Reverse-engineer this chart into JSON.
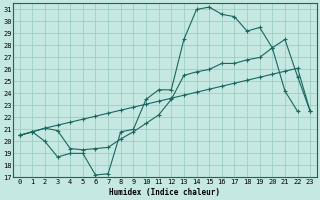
{
  "xlabel": "Humidex (Indice chaleur)",
  "xlim": [
    -0.5,
    23.5
  ],
  "ylim": [
    17,
    31.5
  ],
  "yticks": [
    17,
    18,
    19,
    20,
    21,
    22,
    23,
    24,
    25,
    26,
    27,
    28,
    29,
    30,
    31
  ],
  "xticks": [
    0,
    1,
    2,
    3,
    4,
    5,
    6,
    7,
    8,
    9,
    10,
    11,
    12,
    13,
    14,
    15,
    16,
    17,
    18,
    19,
    20,
    21,
    22,
    23
  ],
  "bg_color": "#c5e8e2",
  "grid_color": "#9ecdc5",
  "line_color": "#1a6660",
  "line1_y": [
    20.5,
    20.8,
    20.0,
    18.7,
    19.0,
    19.0,
    17.2,
    17.3,
    20.8,
    21.0,
    23.5,
    24.3,
    24.3,
    28.5,
    31.0,
    31.2,
    30.6,
    30.4,
    29.2,
    29.5,
    27.8,
    24.2,
    22.5,
    null
  ],
  "line2_y": [
    20.5,
    20.8,
    21.1,
    21.35,
    21.6,
    21.85,
    22.1,
    22.35,
    22.6,
    22.85,
    23.1,
    23.35,
    23.6,
    23.85,
    24.1,
    24.35,
    24.6,
    24.85,
    25.1,
    25.35,
    25.6,
    25.85,
    26.1,
    22.5
  ],
  "line3_y": [
    20.5,
    20.8,
    21.1,
    20.9,
    19.4,
    19.3,
    19.4,
    19.5,
    20.2,
    20.8,
    21.5,
    22.2,
    23.5,
    25.5,
    25.8,
    26.0,
    26.5,
    26.5,
    26.8,
    27.0,
    27.8,
    28.5,
    25.4,
    22.5
  ]
}
